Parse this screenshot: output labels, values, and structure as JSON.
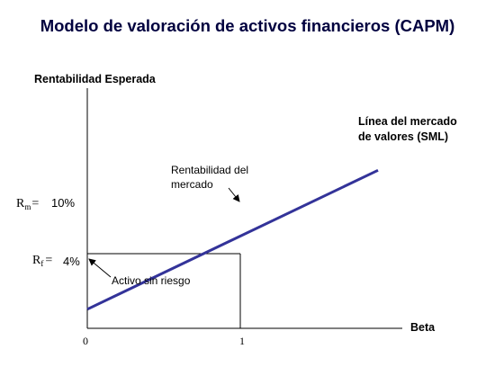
{
  "title": "Modelo de valoración de activos financieros (CAPM)",
  "colors": {
    "sml_line": "#333399",
    "axes": "#000000",
    "title": "#00003f"
  },
  "chart_data": {
    "type": "line",
    "title": "Modelo de valoración de activos financieros (CAPM)",
    "xlabel": "Beta",
    "ylabel": "Rentabilidad Esperada",
    "x_ticks": [
      "0",
      "1"
    ],
    "series": [
      {
        "name": "Línea del mercado de valores (SML)",
        "x": [
          0,
          1,
          1.9
        ],
        "y": [
          4,
          10,
          19
        ]
      }
    ],
    "reference_points": [
      {
        "symbol": "Rm",
        "symbol_base": "R",
        "symbol_sub": "m",
        "equals": "=",
        "value_label": "10%",
        "x": 1,
        "y": 10
      },
      {
        "symbol": "Rf",
        "symbol_base": "R",
        "symbol_sub": "f",
        "equals": "=",
        "value_label": "4%",
        "x": 0,
        "y": 4
      }
    ],
    "annotations": [
      {
        "lines": [
          "Rentabilidad del",
          "mercado"
        ],
        "points_to_x": 1,
        "points_to_y": 10
      },
      {
        "lines": [
          "Activo sin riesgo"
        ],
        "points_to_x": 0,
        "points_to_y": 4
      }
    ],
    "series_label_lines": [
      "Línea del mercado",
      "de valores (SML)"
    ],
    "grid": false
  }
}
